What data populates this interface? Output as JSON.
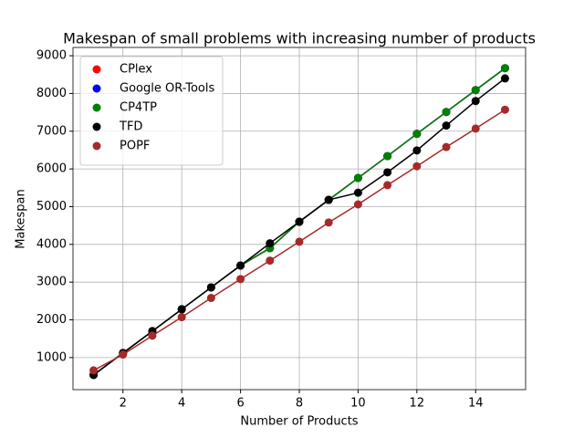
{
  "chart_data": {
    "type": "line",
    "title": "Makespan of small problems with increasing number of products",
    "xlabel": "Number of Products",
    "ylabel": "Makespan",
    "x": [
      1,
      2,
      3,
      4,
      5,
      6,
      7,
      8,
      9,
      10,
      11,
      12,
      13,
      14,
      15
    ],
    "series": [
      {
        "name": "CPlex",
        "color": "#ff0000",
        "values": [
          540,
          1120,
          1700,
          2280,
          2860,
          3440,
          3900,
          4600,
          5180,
          5760,
          6340,
          6930,
          7510,
          8090,
          8670
        ]
      },
      {
        "name": "Google OR-Tools",
        "color": "#0000ff",
        "values": [
          540,
          1120,
          1700,
          2280,
          2860,
          3440,
          3900,
          4600,
          5180,
          5760,
          6340,
          6930,
          7510,
          8090,
          8670
        ]
      },
      {
        "name": "CP4TP",
        "color": "#008000",
        "values": [
          540,
          1120,
          1700,
          2280,
          2860,
          3440,
          3900,
          4600,
          5180,
          5760,
          6340,
          6930,
          7510,
          8090,
          8670
        ]
      },
      {
        "name": "TFD",
        "color": "#000000",
        "values": [
          540,
          1120,
          1700,
          2280,
          2860,
          3440,
          4030,
          4600,
          5180,
          5370,
          5910,
          6490,
          7150,
          7800,
          8400
        ]
      },
      {
        "name": "POPF",
        "color": "#a52a2a",
        "values": [
          660,
          1080,
          1580,
          2070,
          2580,
          3080,
          3570,
          4070,
          4580,
          5060,
          5570,
          6070,
          6580,
          7070,
          7570
        ]
      }
    ],
    "xlim": [
      0.3,
      15.7
    ],
    "xticks": [
      2,
      4,
      6,
      8,
      10,
      12,
      14
    ],
    "ylim": [
      150,
      9220
    ],
    "yticks": [
      1000,
      2000,
      3000,
      4000,
      5000,
      6000,
      7000,
      8000,
      9000
    ],
    "grid": true,
    "legend": "upper left"
  }
}
